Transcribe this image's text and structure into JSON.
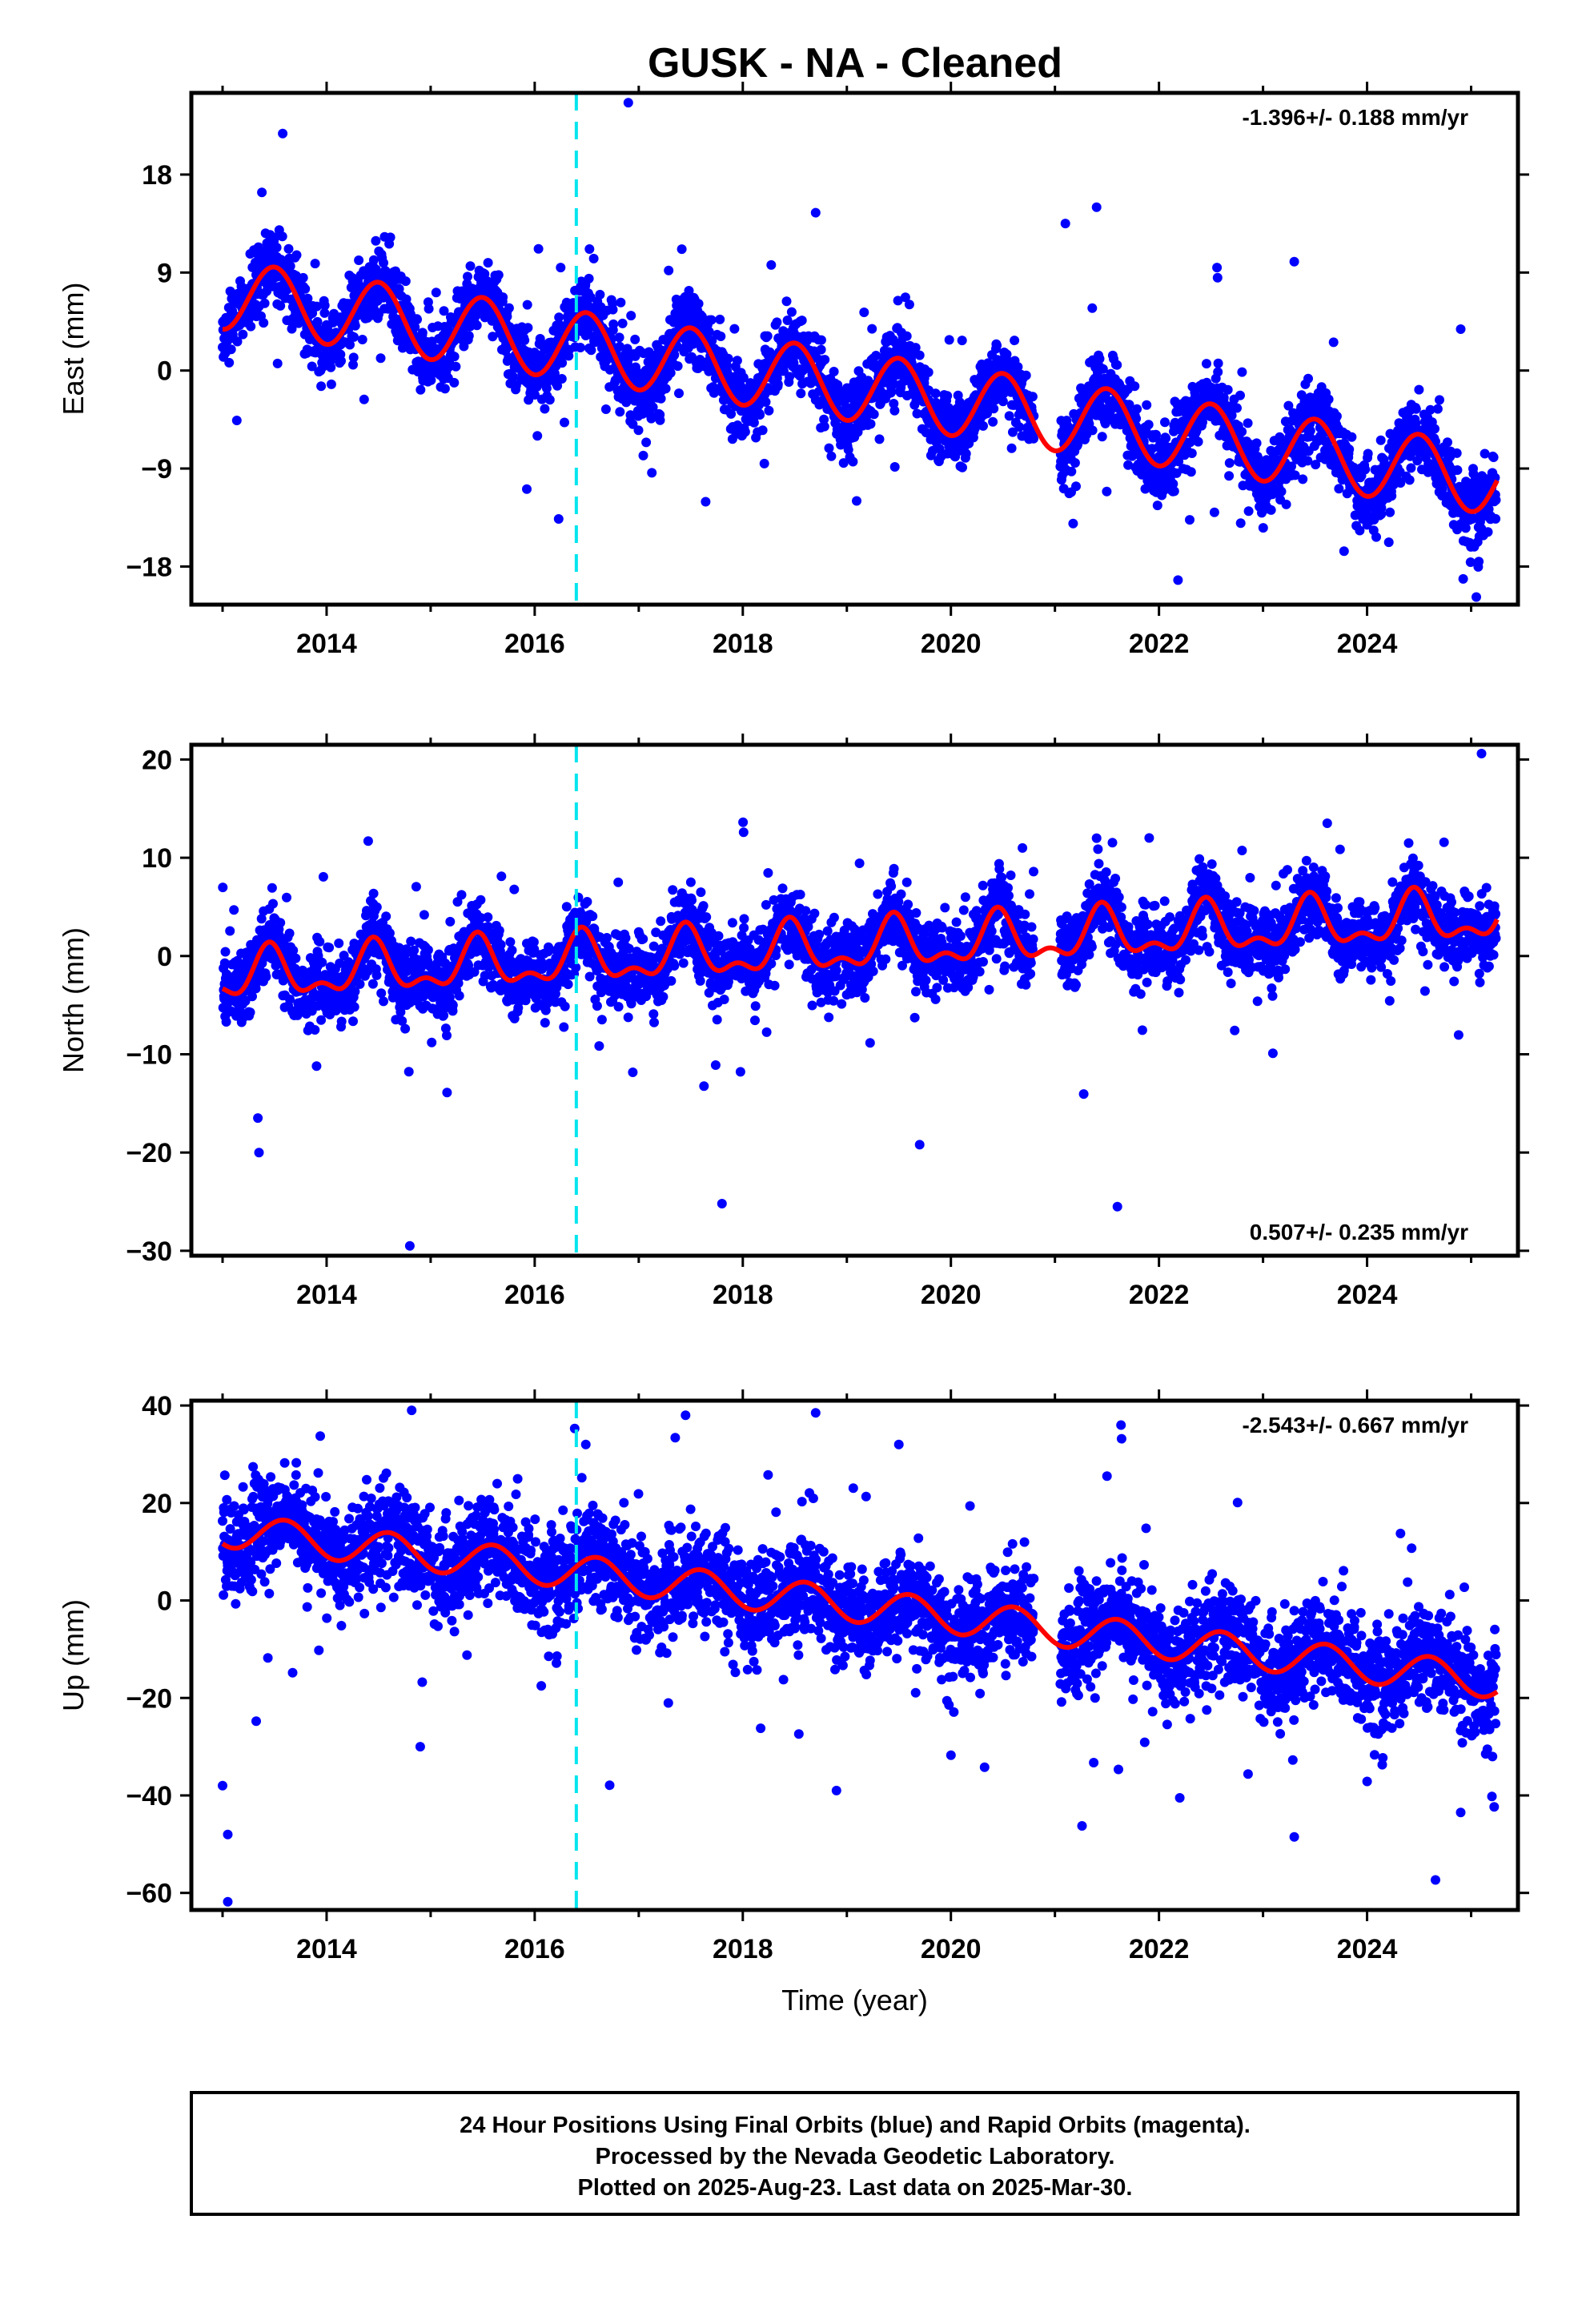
{
  "title": "GUSK  - NA - Cleaned",
  "footer": {
    "lines": [
      "24 Hour Positions Using Final Orbits (blue) and Rapid Orbits (magenta).",
      "Processed by the Nevada Geodetic Laboratory.",
      "Plotted on 2025-Aug-23. Last data on 2025-Mar-30."
    ]
  },
  "colors": {
    "points": "#0000ff",
    "model": "#ff0000",
    "break_line": "#00e5ee",
    "frame": "#000000"
  },
  "chart_data": [
    {
      "type": "scatter",
      "ylabel": "East (mm)",
      "xlabel": "",
      "xlim": [
        2012.7,
        2025.45
      ],
      "ylim": [
        -21.5,
        25.5
      ],
      "yticks": [
        18,
        9,
        0,
        -9,
        -18
      ],
      "ytick_labels": [
        "18",
        "9",
        "0",
        "−9",
        "−18"
      ],
      "xticks": [
        2014,
        2016,
        2018,
        2020,
        2022,
        2024
      ],
      "xtick_labels": [
        "2014",
        "2016",
        "2018",
        "2020",
        "2022",
        "2024"
      ],
      "rate": "-1.396+/- 0.188 mm/yr",
      "rate_position": "top-right",
      "break_epoch": 2016.4,
      "model": {
        "offset": 7.0,
        "trend": -1.396,
        "t0": 2013.0,
        "amplitude": 3.2,
        "phase_year": 2013.5,
        "amplitude2": 0.0,
        "segments": [
          [
            2013.0,
            2016.4,
            0.0
          ],
          [
            2016.4,
            2020.95,
            0.0
          ],
          [
            2020.95,
            2025.25,
            0.0
          ]
        ]
      },
      "scatter": {
        "noise": 1.6,
        "spread": 1.3,
        "outliers": [
          [
            2016.9,
            24.6
          ],
          [
            2021.1,
            13.5
          ],
          [
            2021.4,
            15.0
          ],
          [
            2018.7,
            14.5
          ],
          [
            2025.05,
            -20.8
          ],
          [
            2023.3,
            10.0
          ],
          [
            2024.9,
            3.8
          ]
        ]
      }
    },
    {
      "type": "scatter",
      "ylabel": "North (mm)",
      "xlabel": "",
      "xlim": [
        2012.7,
        2025.45
      ],
      "ylim": [
        -30.5,
        21.5
      ],
      "yticks": [
        20,
        10,
        0,
        -10,
        -20,
        -30
      ],
      "ytick_labels": [
        "20",
        "10",
        "0",
        "−10",
        "−20",
        "−30"
      ],
      "xticks": [
        2014,
        2016,
        2018,
        2020,
        2022,
        2024
      ],
      "xtick_labels": [
        "2014",
        "2016",
        "2018",
        "2020",
        "2022",
        "2024"
      ],
      "rate": "0.507+/- 0.235 mm/yr",
      "rate_position": "bottom-right",
      "break_epoch": 2016.4,
      "model": {
        "offset": -2.2,
        "trend": 0.507,
        "t0": 2013.0,
        "amplitude": 2.2,
        "phase_year": 2013.45,
        "amplitude2": 1.2,
        "segments": [
          [
            2013.0,
            2025.25,
            0.0
          ]
        ]
      },
      "scatter": {
        "noise": 1.8,
        "spread": 1.0,
        "outliers": [
          [
            2025.1,
            20.6
          ],
          [
            2014.8,
            -29.5
          ],
          [
            2017.8,
            -25.2
          ],
          [
            2021.6,
            -25.5
          ],
          [
            2014.4,
            11.7
          ],
          [
            2021.4,
            12.0
          ],
          [
            2024.4,
            11.5
          ],
          [
            2019.7,
            -19.2
          ],
          [
            2013.35,
            -20.0
          ]
        ]
      }
    },
    {
      "type": "scatter",
      "ylabel": "Up (mm)",
      "xlabel": "Time (year)",
      "xlim": [
        2012.7,
        2025.45
      ],
      "ylim": [
        -63.5,
        41.0
      ],
      "yticks": [
        40,
        20,
        0,
        -20,
        -40,
        -60
      ],
      "ytick_labels": [
        "40",
        "20",
        "0",
        "−20",
        "−40",
        "−60"
      ],
      "xticks": [
        2014,
        2016,
        2018,
        2020,
        2022,
        2024
      ],
      "xtick_labels": [
        "2014",
        "2016",
        "2018",
        "2020",
        "2022",
        "2024"
      ],
      "rate": "-2.543+/- 0.667 mm/yr",
      "rate_position": "top-right",
      "break_epoch": 2016.4,
      "model": {
        "offset": 14.5,
        "trend": -2.543,
        "t0": 2013.0,
        "amplitude": 3.5,
        "phase_year": 2013.6,
        "amplitude2": 0.0,
        "segments": [
          [
            2013.0,
            2025.25,
            0.0
          ]
        ]
      },
      "scatter": {
        "noise": 5.0,
        "spread": 4.0,
        "outliers": [
          [
            2013.05,
            -61.8
          ],
          [
            2013.05,
            -48.0
          ],
          [
            2013.0,
            -38.0
          ],
          [
            2017.45,
            38.0
          ],
          [
            2018.7,
            38.5
          ],
          [
            2019.5,
            32.0
          ],
          [
            2021.5,
            25.5
          ],
          [
            2023.3,
            -48.5
          ],
          [
            2024.9,
            -43.5
          ],
          [
            2025.2,
            -40.2
          ],
          [
            2022.2,
            -40.5
          ],
          [
            2014.9,
            -30.0
          ],
          [
            2018.9,
            -39.0
          ]
        ]
      }
    }
  ]
}
